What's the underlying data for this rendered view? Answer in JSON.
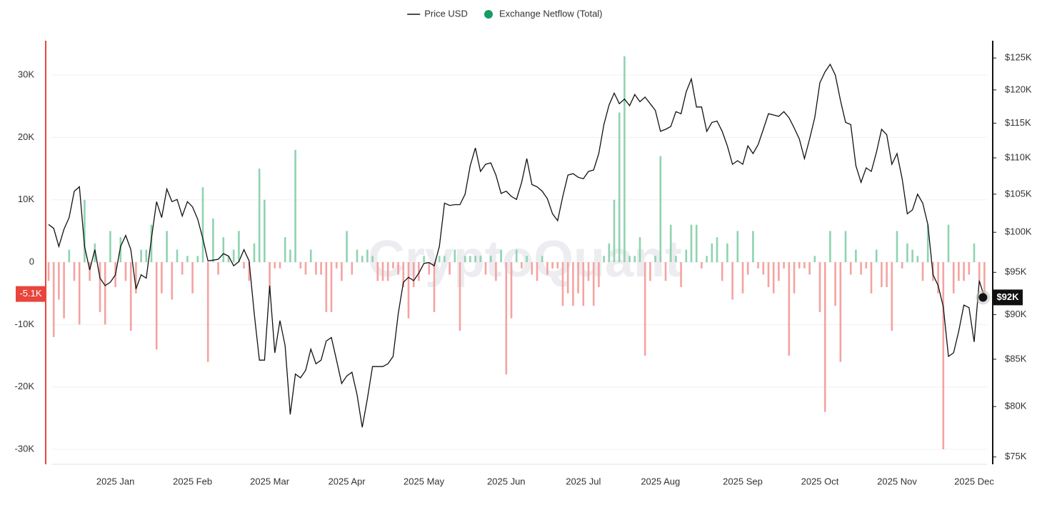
{
  "chart_data": {
    "type": "combo",
    "watermark": "CryptoQuant",
    "legend": "top",
    "grid": true,
    "categories": [
      null,
      null,
      null,
      null,
      null,
      null,
      null,
      null,
      null,
      null,
      null,
      null,
      null,
      "2025 Jan",
      null,
      null,
      null,
      null,
      null,
      null,
      null,
      null,
      null,
      null,
      null,
      null,
      null,
      null,
      "2025 Feb",
      null,
      null,
      null,
      null,
      null,
      null,
      null,
      null,
      null,
      null,
      null,
      null,
      null,
      null,
      "2025 Mar",
      null,
      null,
      null,
      null,
      null,
      null,
      null,
      null,
      null,
      null,
      null,
      null,
      null,
      null,
      "2025 Apr",
      null,
      null,
      null,
      null,
      null,
      null,
      null,
      null,
      null,
      null,
      null,
      null,
      null,
      null,
      "2025 May",
      null,
      null,
      null,
      null,
      null,
      null,
      null,
      null,
      null,
      null,
      null,
      null,
      null,
      null,
      null,
      "2025 Jun",
      null,
      null,
      null,
      null,
      null,
      null,
      null,
      null,
      null,
      null,
      null,
      null,
      null,
      null,
      "2025 Jul",
      null,
      null,
      null,
      null,
      null,
      null,
      null,
      null,
      null,
      null,
      null,
      null,
      null,
      null,
      "2025 Aug",
      null,
      null,
      null,
      null,
      null,
      null,
      null,
      null,
      null,
      null,
      null,
      null,
      null,
      null,
      null,
      "2025 Sep",
      null,
      null,
      null,
      null,
      null,
      null,
      null,
      null,
      null,
      null,
      null,
      null,
      null,
      null,
      "2025 Oct",
      null,
      null,
      null,
      null,
      null,
      null,
      null,
      null,
      null,
      null,
      null,
      null,
      null,
      null,
      "2025 Nov",
      null,
      null,
      null,
      null,
      null,
      null,
      null,
      null,
      null,
      null,
      null,
      null,
      null,
      null,
      "2025 Dec",
      null,
      null
    ],
    "ylim": [
      -32400,
      35500
    ],
    "yticks": [
      {
        "value": 30000,
        "label": "30K"
      },
      {
        "value": 20000,
        "label": "20K"
      },
      {
        "value": 10000,
        "label": "10K"
      },
      0,
      {
        "value": -10000,
        "label": "-10K"
      },
      {
        "value": -20000,
        "label": "-20K"
      },
      {
        "value": -30000,
        "label": "-30K"
      }
    ],
    "y2lim": [
      74300,
      127800
    ],
    "y2log": true,
    "y2ticks": [
      {
        "value": 125000,
        "label": "$125K"
      },
      {
        "value": 120000,
        "label": "$120K"
      },
      {
        "value": 115000,
        "label": "$115K"
      },
      {
        "value": 110000,
        "label": "$110K"
      },
      {
        "value": 105000,
        "label": "$105K"
      },
      {
        "value": 100000,
        "label": "$100K"
      },
      {
        "value": 95000,
        "label": "$95K"
      },
      {
        "value": 90000,
        "label": "$90K"
      },
      {
        "value": 85000,
        "label": "$85K"
      },
      {
        "value": 80000,
        "label": "$80K"
      },
      {
        "value": 75000,
        "label": "$75K"
      }
    ],
    "series": [
      {
        "name": "Price USD",
        "type": "line",
        "axis": "y2",
        "color": "#111111",
        "values": [
          101000,
          100500,
          98200,
          100400,
          101900,
          105400,
          106000,
          98200,
          95300,
          97800,
          94300,
          93400,
          93800,
          94700,
          98200,
          99600,
          97800,
          93000,
          94700,
          94300,
          99200,
          104000,
          101900,
          105700,
          104000,
          104300,
          102100,
          104000,
          103300,
          101700,
          99200,
          96400,
          96500,
          96600,
          97300,
          97000,
          95800,
          96300,
          97800,
          96400,
          90100,
          84900,
          84900,
          93400,
          85700,
          89300,
          86500,
          79200,
          83400,
          83000,
          83800,
          86100,
          84500,
          84900,
          87000,
          87400,
          84900,
          82400,
          83200,
          83600,
          81200,
          77900,
          80800,
          84200,
          84200,
          84200,
          84500,
          85300,
          90100,
          93800,
          94400,
          94000,
          94900,
          96100,
          96200,
          95800,
          98200,
          103800,
          103500,
          103600,
          103600,
          105000,
          108900,
          111400,
          108100,
          109100,
          109300,
          107600,
          105100,
          105400,
          104700,
          104300,
          106600,
          109900,
          106300,
          106000,
          105400,
          104400,
          102400,
          101500,
          104700,
          107600,
          107800,
          107300,
          107100,
          108100,
          108300,
          110600,
          114800,
          117700,
          119500,
          117900,
          118600,
          117600,
          119300,
          118200,
          118900,
          117900,
          116900,
          113800,
          114100,
          114500,
          116700,
          116400,
          119700,
          121700,
          117400,
          117400,
          113800,
          115100,
          115300,
          113800,
          111700,
          109100,
          109600,
          109100,
          111700,
          110600,
          111900,
          114100,
          116400,
          116200,
          116000,
          116700,
          115800,
          114300,
          112700,
          109900,
          112700,
          115800,
          121100,
          122800,
          124000,
          122300,
          118400,
          115100,
          114800,
          108900,
          106600,
          108600,
          108100,
          110800,
          114100,
          113300,
          109100,
          110600,
          107100,
          102400,
          102900,
          105000,
          103800,
          101000,
          94700,
          93400,
          90900,
          85300,
          85700,
          88100,
          91100,
          90800,
          86900,
          94000,
          92000
        ]
      },
      {
        "name": "Exchange Netflow (Total)",
        "type": "bar",
        "color": "#169c63",
        "positive_color": "#8fd3b0",
        "negative_color": "#f4a3a0",
        "values": [
          -3000,
          -12000,
          -6000,
          -9000,
          2000,
          -3000,
          -10000,
          10000,
          -3000,
          3000,
          -8000,
          -10000,
          5000,
          -4000,
          4000,
          -3000,
          -11000,
          -5000,
          2000,
          2000,
          6000,
          -14000,
          -5000,
          5000,
          -6000,
          2000,
          -2000,
          1000,
          -5000,
          1000,
          12000,
          -16000,
          7000,
          -2000,
          4000,
          1000,
          2000,
          5000,
          -1000,
          -3000,
          3000,
          15000,
          10000,
          -5000,
          -1000,
          -1000,
          4000,
          2000,
          18000,
          -1000,
          -2000,
          2000,
          -2000,
          -2000,
          -8000,
          -8000,
          -1000,
          -3000,
          5000,
          -2000,
          2000,
          1000,
          2000,
          1000,
          -3000,
          -3000,
          -3000,
          -1000,
          -2000,
          -4000,
          -9000,
          -4000,
          -3000,
          1000,
          -2000,
          -8000,
          1000,
          1000,
          -2000,
          2000,
          -11000,
          1000,
          1000,
          1000,
          1000,
          -2000,
          1000,
          -3000,
          2000,
          -18000,
          -9000,
          2000,
          -1000,
          1000,
          -2000,
          -3000,
          1000,
          -2000,
          -1000,
          -1000,
          -7000,
          -5000,
          -7000,
          -5000,
          -7000,
          -3000,
          -7000,
          -4000,
          1000,
          3000,
          10000,
          24000,
          33000,
          1000,
          1000,
          4000,
          -15000,
          -3000,
          1000,
          17000,
          -3000,
          6000,
          1000,
          -4000,
          2000,
          6000,
          6000,
          -1000,
          1000,
          3000,
          4000,
          -3000,
          3000,
          -6000,
          5000,
          -5000,
          -2000,
          5000,
          -1000,
          -2000,
          -4000,
          -5000,
          -3000,
          -1000,
          -15000,
          -5000,
          -1000,
          -1000,
          -2000,
          1000,
          -8000,
          -24000,
          5000,
          -7000,
          -16000,
          5000,
          -2000,
          2000,
          -2000,
          -1000,
          -5000,
          2000,
          -4000,
          -4000,
          -11000,
          5000,
          -1000,
          3000,
          2000,
          1000,
          -3000,
          6000,
          -3000,
          -5000,
          -30000,
          6000,
          -5000,
          -3000,
          -3000,
          -2000,
          3000,
          -3000,
          -5100
        ]
      }
    ],
    "annotations": [
      {
        "label": "-5.1K",
        "value": -5100,
        "axis": "y",
        "color": "#e8453c"
      },
      {
        "label": "$92K",
        "value": 92000,
        "axis": "y2",
        "color": "#111111"
      }
    ]
  }
}
